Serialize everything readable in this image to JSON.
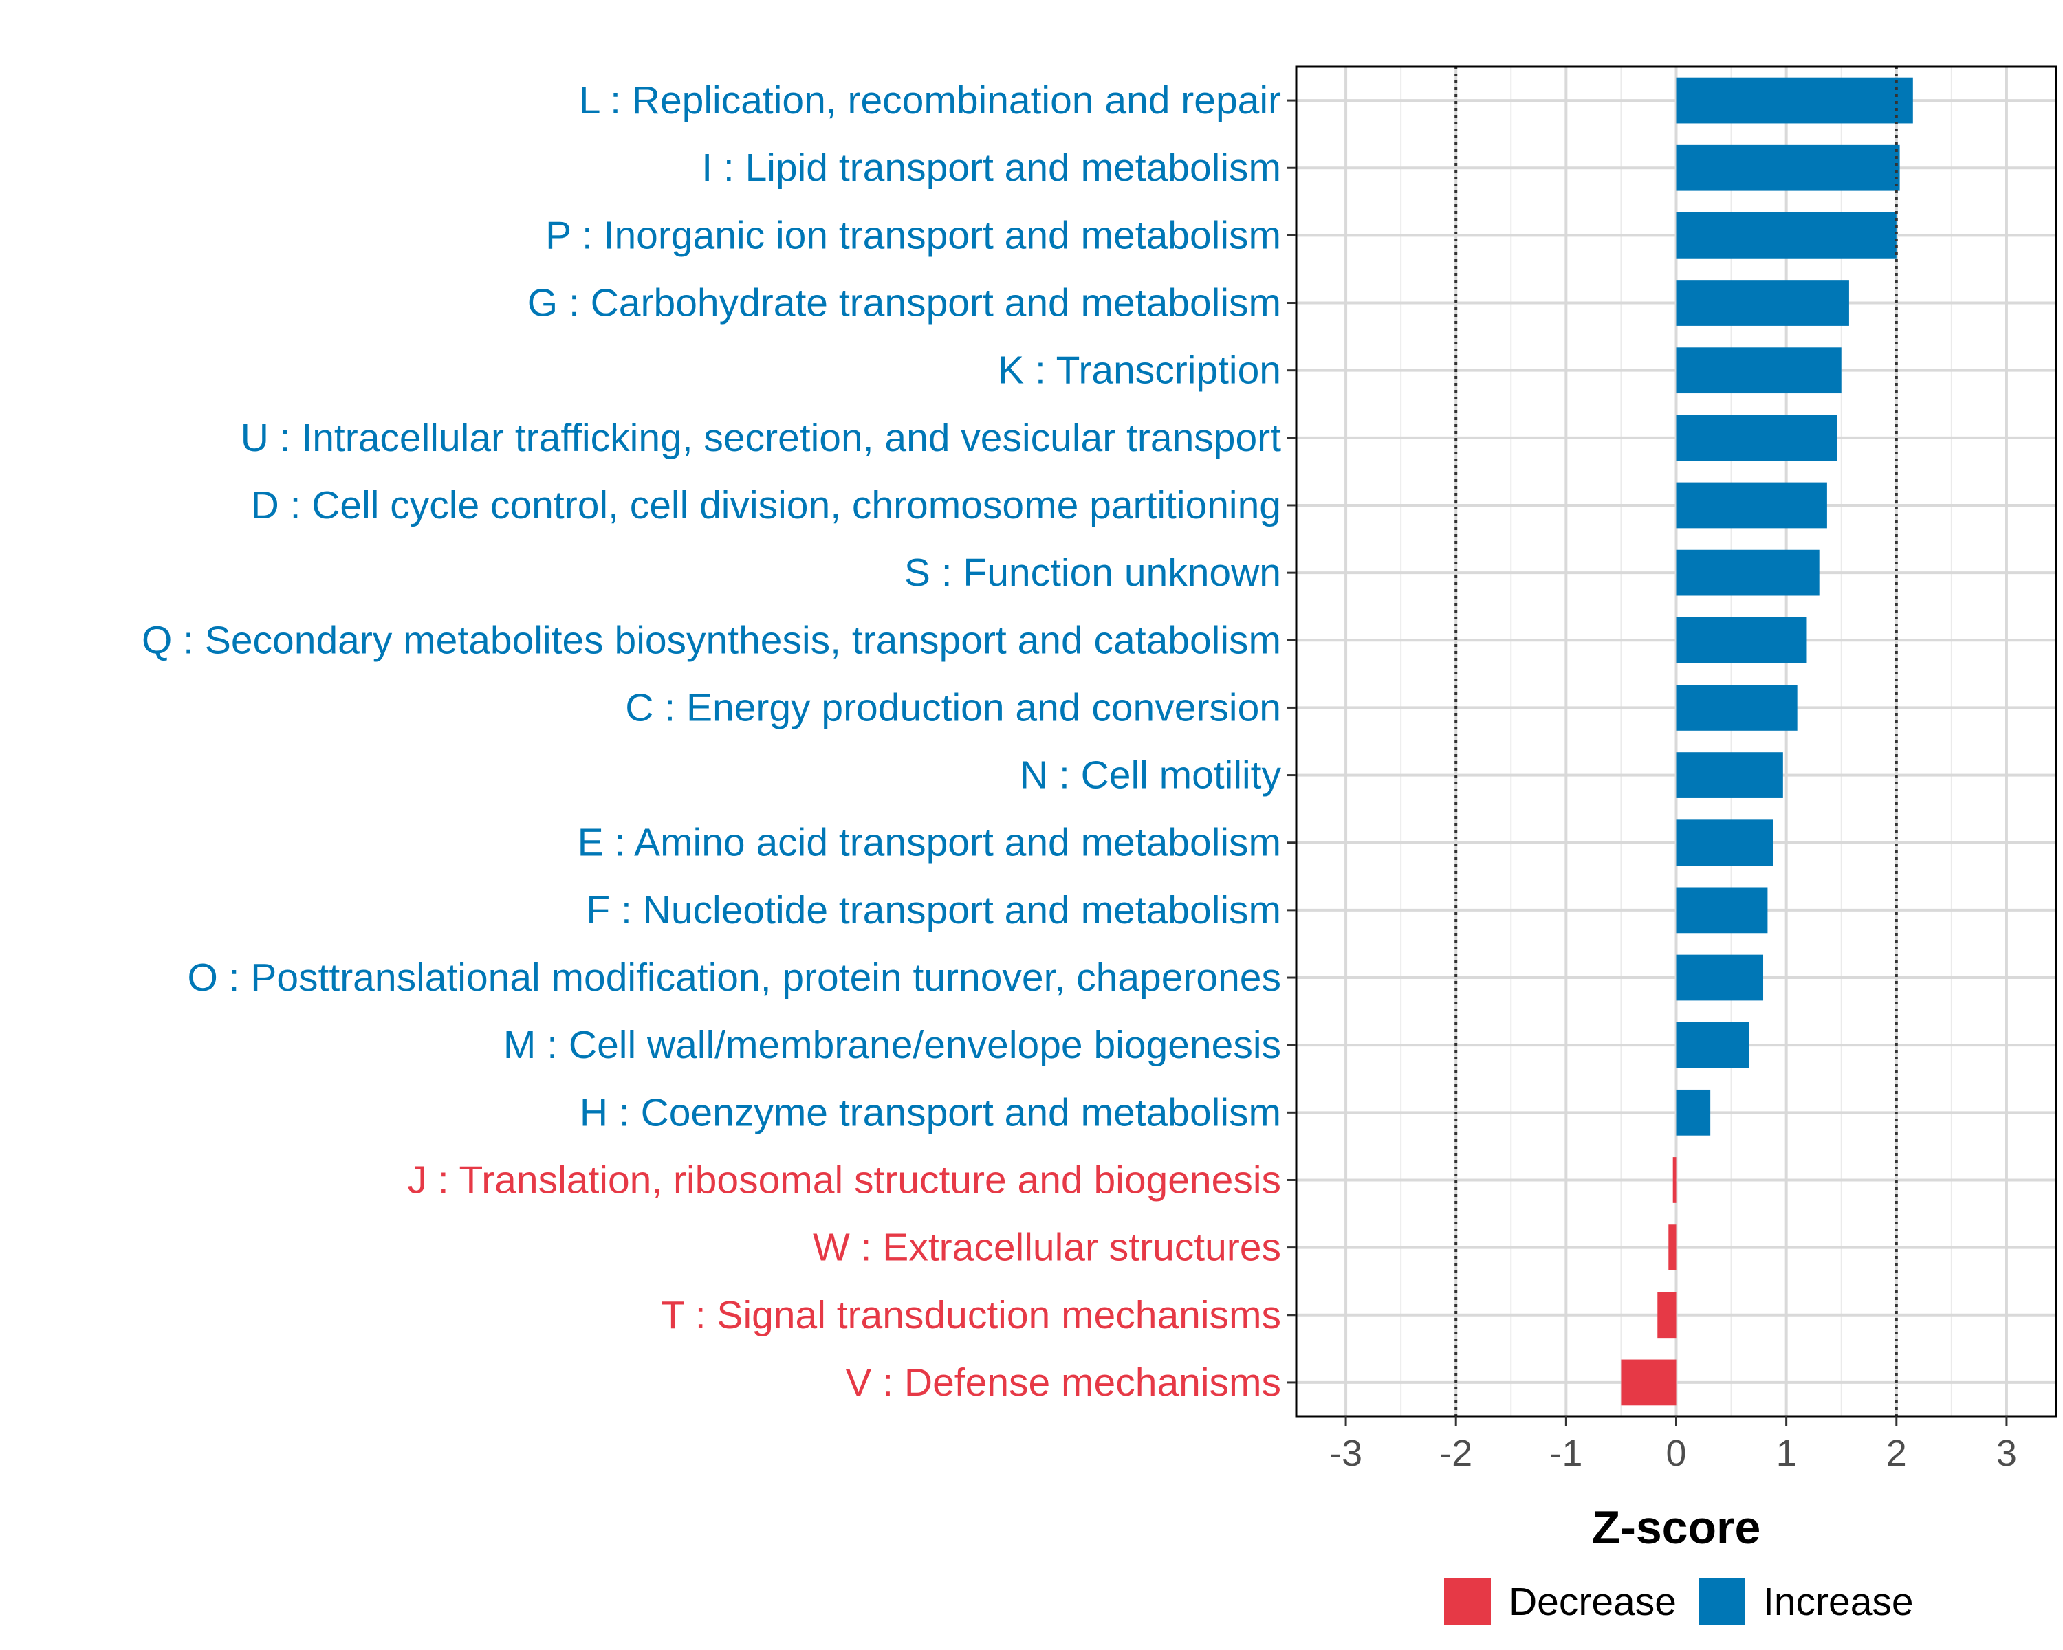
{
  "chart_data": {
    "type": "bar",
    "orientation": "horizontal",
    "title": "",
    "xlabel": "Z-score",
    "ylabel": "",
    "xlim": [
      -3.45,
      3.45
    ],
    "xticks": [
      -3,
      -2,
      -1,
      0,
      1,
      2,
      3
    ],
    "reference_lines": [
      -2,
      2
    ],
    "grid": true,
    "legend_position": "bottom",
    "colors": {
      "Decrease": "#e63946",
      "Increase": "#0077b6"
    },
    "legend": [
      "Decrease",
      "Increase"
    ],
    "categories": [
      "L : Replication, recombination and repair",
      "I : Lipid transport and metabolism",
      "P : Inorganic ion transport and metabolism",
      "G : Carbohydrate transport and metabolism",
      "K : Transcription",
      "U : Intracellular trafficking, secretion, and vesicular transport",
      "D : Cell cycle control, cell division, chromosome partitioning",
      "S : Function unknown",
      "Q : Secondary metabolites biosynthesis, transport and catabolism",
      "C : Energy production and conversion",
      "N : Cell motility",
      "E : Amino acid transport and metabolism",
      "F : Nucleotide transport and metabolism",
      "O : Posttranslational modification, protein turnover, chaperones",
      "M : Cell wall/membrane/envelope biogenesis",
      "H : Coenzyme transport and metabolism",
      "J : Translation, ribosomal structure and biogenesis",
      "W : Extracellular structures",
      "T : Signal transduction mechanisms",
      "V : Defense mechanisms"
    ],
    "values": [
      2.15,
      2.03,
      2.0,
      1.57,
      1.5,
      1.46,
      1.37,
      1.3,
      1.18,
      1.1,
      0.97,
      0.88,
      0.83,
      0.79,
      0.66,
      0.31,
      -0.03,
      -0.07,
      -0.17,
      -0.5
    ],
    "groups": [
      "Increase",
      "Increase",
      "Increase",
      "Increase",
      "Increase",
      "Increase",
      "Increase",
      "Increase",
      "Increase",
      "Increase",
      "Increase",
      "Increase",
      "Increase",
      "Increase",
      "Increase",
      "Increase",
      "Decrease",
      "Decrease",
      "Decrease",
      "Decrease"
    ]
  }
}
